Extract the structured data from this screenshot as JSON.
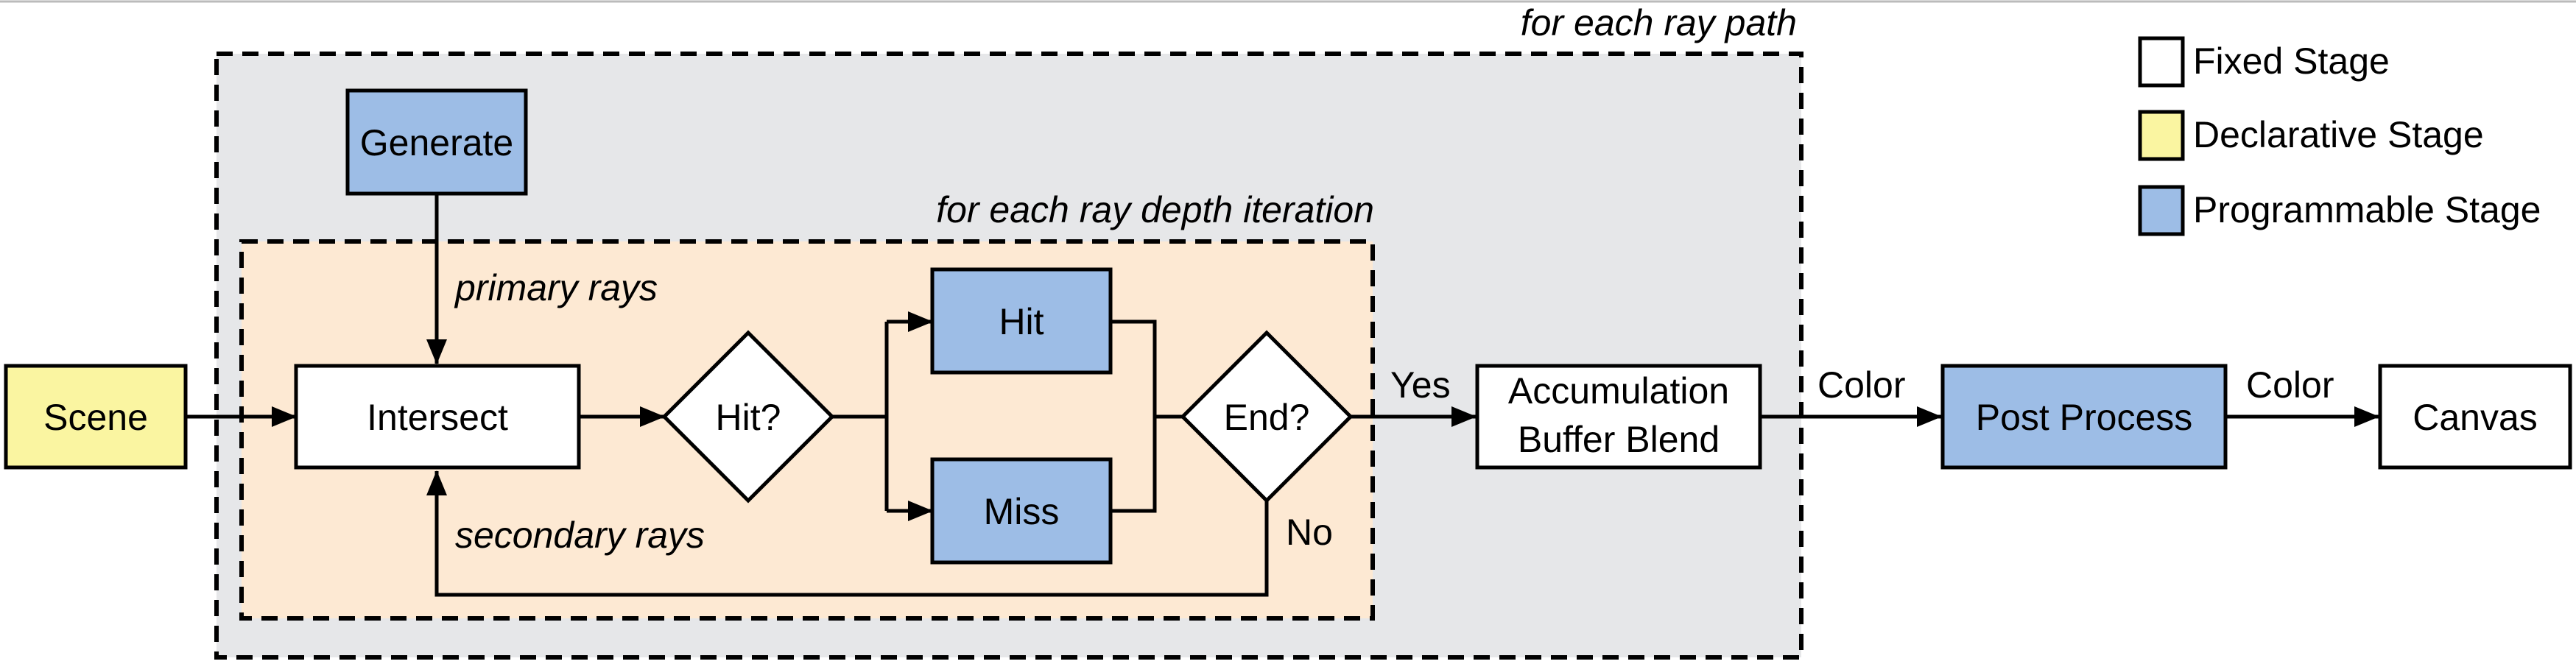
{
  "colors": {
    "fixed": "#ffffff",
    "declarative": "#faf5a1",
    "programmable": "#9dbde6",
    "outer_region": "#e6e7e9",
    "inner_region": "#fde9d3",
    "stroke": "#000000"
  },
  "regions": {
    "outer_label": "for each ray path",
    "inner_label": "for each ray depth iteration"
  },
  "nodes": {
    "scene": "Scene",
    "generate": "Generate",
    "intersect": "Intersect",
    "hit_decision": "Hit?",
    "hit": "Hit",
    "miss": "Miss",
    "end_decision": "End?",
    "accumulation_line1": "Accumulation",
    "accumulation_line2": "Buffer Blend",
    "post_process": "Post Process",
    "canvas": "Canvas"
  },
  "edge_labels": {
    "primary_rays": "primary rays",
    "secondary_rays": "secondary rays",
    "yes": "Yes",
    "no": "No",
    "color_1": "Color",
    "color_2": "Color"
  },
  "legend": [
    {
      "label": "Fixed Stage",
      "color": "#ffffff"
    },
    {
      "label": "Declarative Stage",
      "color": "#faf5a1"
    },
    {
      "label": "Programmable Stage",
      "color": "#9dbde6"
    }
  ]
}
